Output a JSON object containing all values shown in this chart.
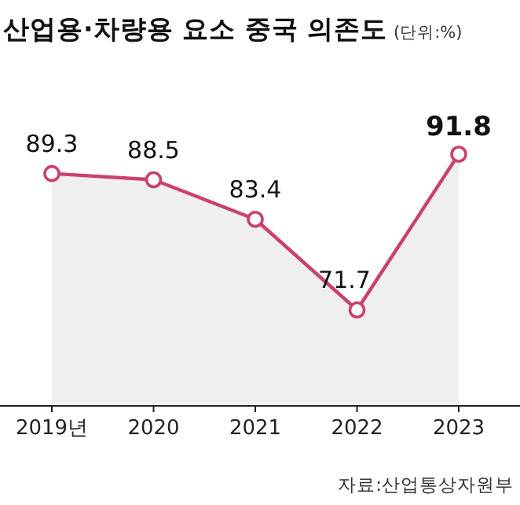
{
  "chart_data": {
    "type": "line",
    "title": "산업용·차량용 요소 중국 의존도",
    "subtitle": "(단위:%)",
    "categories": [
      "2019년",
      "2020",
      "2021",
      "2022",
      "2023"
    ],
    "series": [
      {
        "color": "#c9416f",
        "values": [
          89.3,
          88.5,
          83.4,
          71.7,
          91.8
        ]
      }
    ],
    "data_labels": true,
    "marker": "circle",
    "annotations": [
      "자료:산업통상자원부"
    ]
  }
}
